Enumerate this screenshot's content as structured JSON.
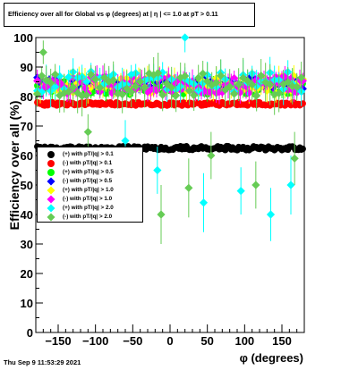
{
  "title": "Efficiency over all for Global vs φ (degrees) at |   η | <= 1.0 at pT > 0.11",
  "datestamp": "Thu Sep  9 11:53:29 2021",
  "chart_data": {
    "type": "scatter",
    "title": "Efficiency over all for Global vs φ (degrees) at |   η | <= 1.0 at pT > 0.11",
    "xlabel": "φ (degrees)",
    "ylabel": "Efficiency over all (%)",
    "xlim": [
      -180,
      180
    ],
    "ylim": [
      0,
      100
    ],
    "xticks": [
      -150,
      -100,
      -50,
      0,
      50,
      100,
      150
    ],
    "xtick_labels": [
      "−150",
      "−100",
      "−50",
      "0",
      "50",
      "100",
      "150"
    ],
    "yticks": [
      0,
      10,
      20,
      30,
      40,
      50,
      60,
      70,
      80,
      90,
      100
    ],
    "ytick_labels": [
      "0",
      "10",
      "20",
      "30",
      "40",
      "50",
      "60",
      "70",
      "80",
      "90",
      "100"
    ],
    "grid": false,
    "legend_position": "middle-left",
    "series": [
      {
        "name": "(+) with pT/|q| > 0.1",
        "color": "#000000",
        "marker": "circle",
        "base": 62.5,
        "jitter": 0.7,
        "err": 0.7,
        "seed": 11,
        "step": 2
      },
      {
        "name": "(-) with pT/|q| > 0.1",
        "color": "#ff0000",
        "marker": "circle",
        "base": 77.5,
        "jitter": 0.6,
        "err": 0.7,
        "seed": 23,
        "step": 2
      },
      {
        "name": "(+) with pT/|q| > 0.5",
        "color": "#00ff00",
        "marker": "circle",
        "base": 83.0,
        "jitter": 2.5,
        "err": 2.0,
        "seed": 37,
        "step": 4
      },
      {
        "name": "(-) with pT/|q| > 0.5",
        "color": "#0000ff",
        "marker": "diamond",
        "base": 84.5,
        "jitter": 2.0,
        "err": 2.0,
        "seed": 41,
        "step": 4
      },
      {
        "name": "(+) with pT/|q| > 1.0",
        "color": "#ffff00",
        "marker": "diamond",
        "base": 84.0,
        "jitter": 3.0,
        "err": 3.0,
        "seed": 53,
        "step": 4
      },
      {
        "name": "(-) with pT/|q| > 1.0",
        "color": "#ff00ff",
        "marker": "diamond",
        "base": 84.0,
        "jitter": 3.0,
        "err": 3.0,
        "seed": 67,
        "step": 4
      },
      {
        "name": "(+) with pT/|q| > 2.0",
        "color": "#00ffff",
        "marker": "diamond",
        "base": 85.0,
        "jitter": 3.5,
        "err": 4.0,
        "seed": 71,
        "step": 6
      },
      {
        "name": "(-) with pT/|q| > 2.0",
        "color": "#66cc55",
        "marker": "diamond",
        "base": 84.0,
        "jitter": 4.0,
        "err": 5.0,
        "seed": 89,
        "step": 6
      }
    ],
    "outliers": [
      {
        "series": 6,
        "x": -17,
        "y": 55,
        "err": 8
      },
      {
        "series": 6,
        "x": 20,
        "y": 100,
        "err": 5
      },
      {
        "series": 6,
        "x": 45,
        "y": 44,
        "err": 10
      },
      {
        "series": 6,
        "x": 95,
        "y": 48,
        "err": 8
      },
      {
        "series": 6,
        "x": 135,
        "y": 40,
        "err": 9
      },
      {
        "series": 6,
        "x": 162,
        "y": 50,
        "err": 10
      },
      {
        "series": 6,
        "x": -60,
        "y": 65,
        "err": 7
      },
      {
        "series": 7,
        "x": -12,
        "y": 40,
        "err": 10
      },
      {
        "series": 7,
        "x": 25,
        "y": 49,
        "err": 10
      },
      {
        "series": 7,
        "x": 115,
        "y": 50,
        "err": 8
      },
      {
        "series": 7,
        "x": 167,
        "y": 59,
        "err": 9
      },
      {
        "series": 7,
        "x": -110,
        "y": 68,
        "err": 6
      },
      {
        "series": 7,
        "x": 55,
        "y": 60,
        "err": 8
      },
      {
        "series": 7,
        "x": -170,
        "y": 95,
        "err": 4
      }
    ]
  }
}
